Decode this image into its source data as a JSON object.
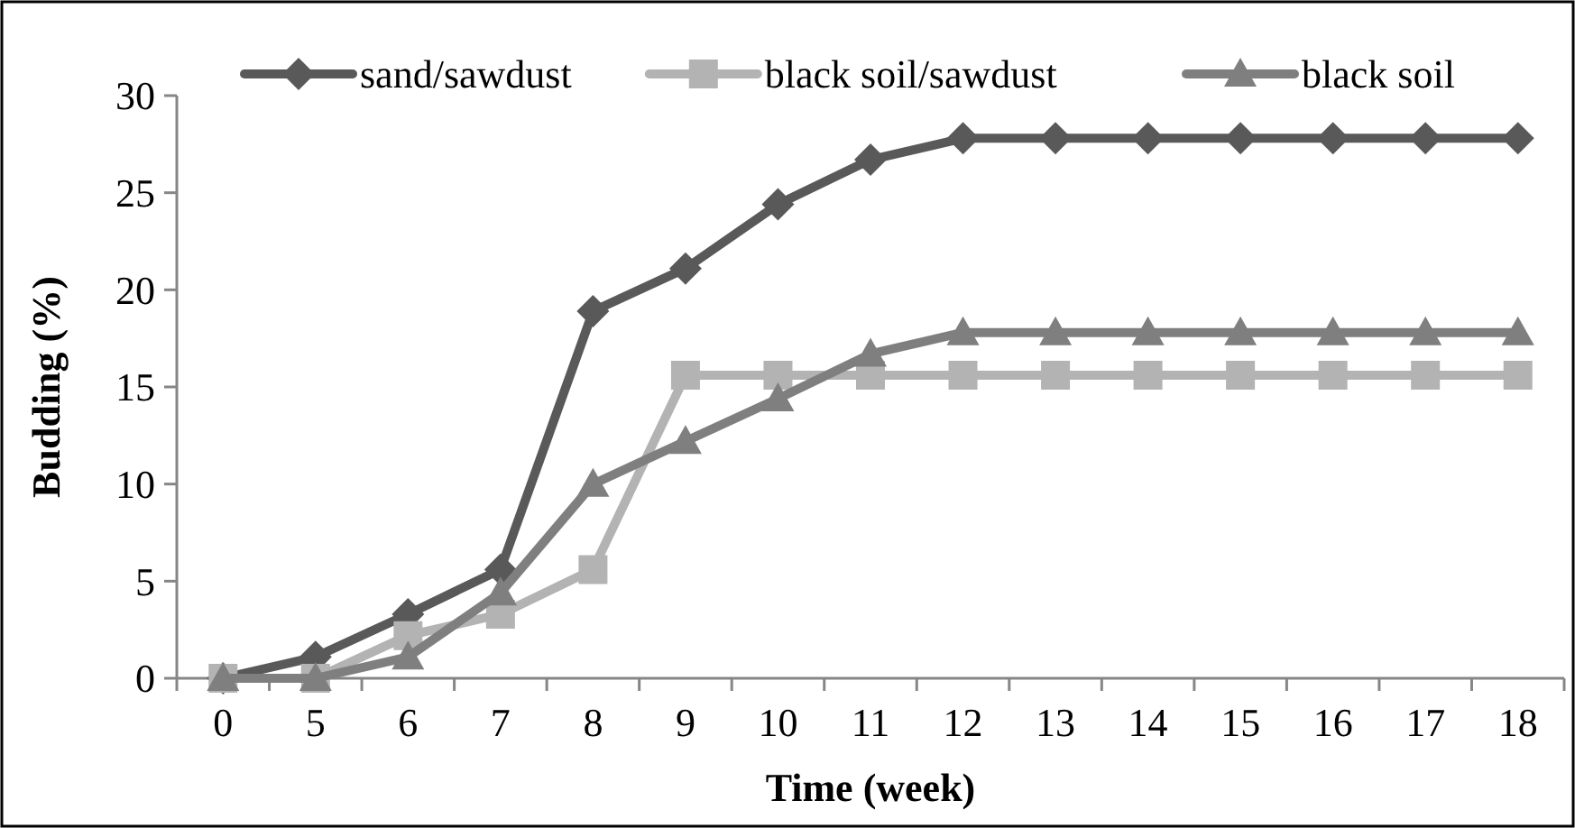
{
  "chart_data": {
    "type": "line",
    "xlabel": "Time (week)",
    "ylabel": "Budding (%)",
    "categories": [
      "0",
      "5",
      "6",
      "7",
      "8",
      "9",
      "10",
      "11",
      "12",
      "13",
      "14",
      "15",
      "16",
      "17",
      "18"
    ],
    "series": [
      {
        "name": "sand/sawdust",
        "color": "#595959",
        "marker": "diamond",
        "values": [
          0,
          1.1,
          3.3,
          5.6,
          18.9,
          21.1,
          24.4,
          26.7,
          27.8,
          27.8,
          27.8,
          27.8,
          27.8,
          27.8,
          27.8
        ]
      },
      {
        "name": "black soil/sawdust",
        "color": "#b3b3b3",
        "marker": "square",
        "values": [
          0,
          0,
          2.2,
          3.3,
          5.6,
          15.6,
          15.6,
          15.6,
          15.6,
          15.6,
          15.6,
          15.6,
          15.6,
          15.6,
          15.6
        ]
      },
      {
        "name": "black soil",
        "color": "#7f7f7f",
        "marker": "triangle",
        "values": [
          0,
          0,
          1.1,
          4.4,
          10,
          12.2,
          14.4,
          16.7,
          17.8,
          17.8,
          17.8,
          17.8,
          17.8,
          17.8,
          17.8
        ]
      }
    ],
    "ylim": [
      0,
      30
    ],
    "yticks": [
      0,
      5,
      10,
      15,
      20,
      25,
      30
    ],
    "grid": false,
    "legend": "top"
  }
}
